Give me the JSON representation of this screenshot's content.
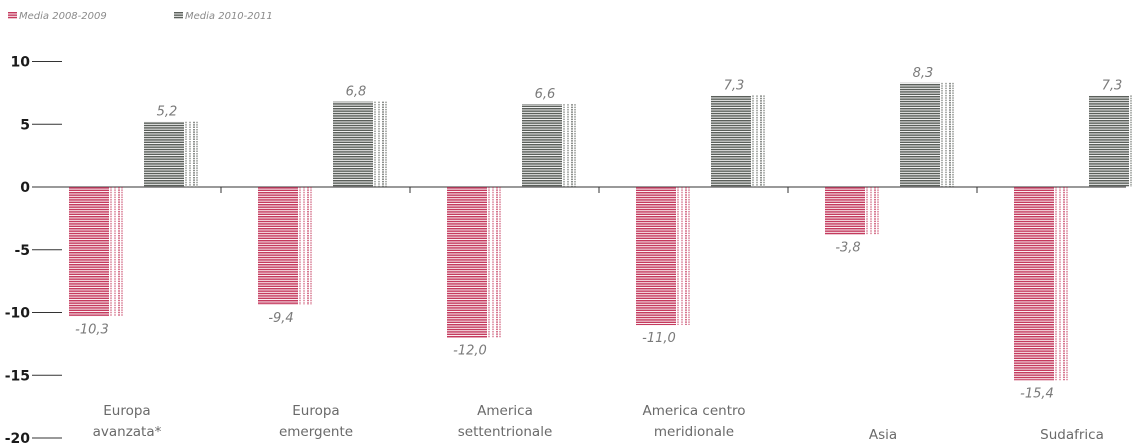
{
  "chart_data": {
    "type": "bar",
    "categories": [
      [
        "Europa",
        "avanzata*"
      ],
      [
        "Europa",
        "emergente"
      ],
      [
        "America",
        "settentrionale"
      ],
      [
        "America centro",
        "meridionale"
      ],
      [
        "Asia"
      ],
      [
        "Sudafrica"
      ]
    ],
    "series": [
      {
        "name": "Media 2008-2009",
        "color": "#c43a5e",
        "values": [
          -10.3,
          -9.4,
          -12.0,
          -11.0,
          -3.8,
          -15.4
        ],
        "labels": [
          "-10,3",
          "-9,4",
          "-12,0",
          "-11,0",
          "-3,8",
          "-15,4"
        ]
      },
      {
        "name": "Media 2010-2011",
        "color": "#5a5f5a",
        "values": [
          5.2,
          6.8,
          6.6,
          7.3,
          8.3,
          7.3
        ],
        "labels": [
          "5,2",
          "6,8",
          "6,6",
          "7,3",
          "8,3",
          "7,3"
        ]
      }
    ],
    "ylim": [
      -20,
      10
    ],
    "yticks": [
      10,
      5,
      0,
      -5,
      -10,
      -15,
      -20
    ],
    "ytick_labels": [
      "10",
      "5",
      "0",
      "-5",
      "-10",
      "-15",
      "-20"
    ],
    "legend_position": "top-left",
    "grid": false
  }
}
